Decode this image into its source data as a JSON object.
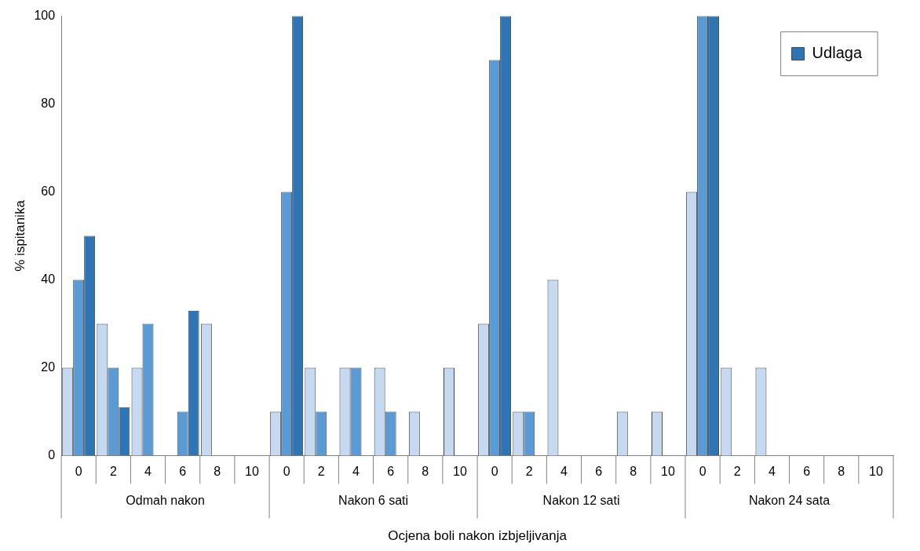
{
  "chart_data": {
    "type": "bar",
    "xlabel": "Ocjena boli nakon izbjeljivanja",
    "ylabel": "% ispitanika",
    "categories": [
      "0",
      "2",
      "4",
      "6",
      "8",
      "10",
      "0",
      "2",
      "4",
      "6",
      "8",
      "10",
      "0",
      "2",
      "4",
      "6",
      "8",
      "10",
      "0",
      "2",
      "4",
      "6",
      "8",
      "10"
    ],
    "series": [
      {
        "color": "#c5d9f1",
        "values": [
          20,
          30,
          20,
          0,
          30,
          0,
          10,
          20,
          20,
          20,
          10,
          20,
          30,
          10,
          40,
          0,
          10,
          10,
          60,
          20,
          20,
          0,
          0,
          0
        ]
      },
      {
        "color": "#5b9bd5",
        "values": [
          40,
          20,
          30,
          10,
          0,
          0,
          60,
          10,
          20,
          10,
          0,
          0,
          90,
          10,
          0,
          0,
          0,
          0,
          100,
          0,
          0,
          0,
          0,
          0
        ]
      },
      {
        "name": "Udlaga",
        "color": "#2e75b6",
        "values": [
          50,
          11,
          0,
          33,
          0,
          0,
          100,
          0,
          0,
          0,
          0,
          0,
          100,
          0,
          0,
          0,
          0,
          0,
          100,
          0,
          0,
          0,
          0,
          0
        ]
      }
    ],
    "annotations": [
      "Odmah nakon",
      "Nakon 6 sati",
      "Nakon 12 sati",
      "Nakon 24 sata"
    ],
    "ylim": [
      0,
      100
    ],
    "yticks": [
      0,
      20,
      40,
      60,
      80,
      100
    ],
    "grid": false,
    "legend": "top right"
  }
}
